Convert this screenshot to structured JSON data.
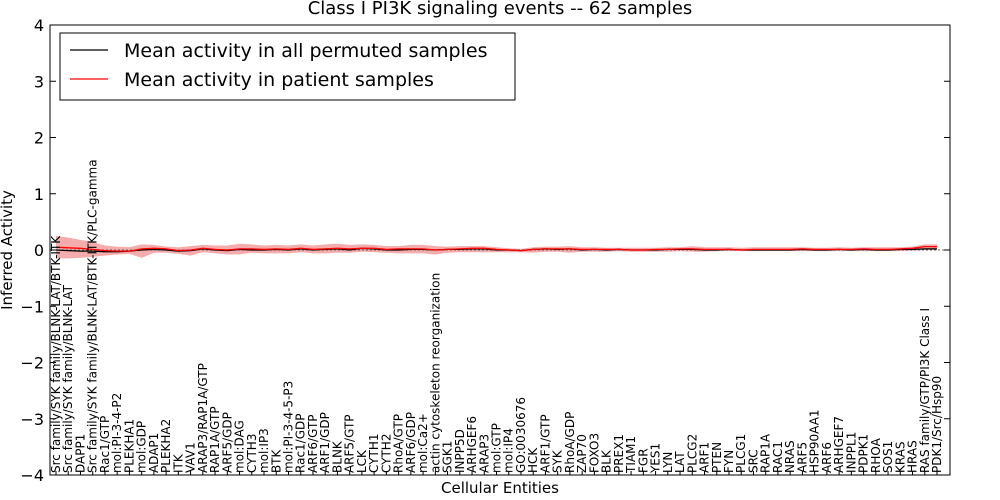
{
  "chart_data": {
    "type": "line",
    "title": "Class I PI3K signaling events -- 62 samples",
    "xlabel": "Cellular Entities",
    "ylabel": "Inferred Activity",
    "ylim": [
      -4,
      4
    ],
    "yticks": [
      "−4",
      "−3",
      "−2",
      "−1",
      "0",
      "1",
      "2",
      "3",
      "4"
    ],
    "grid": false,
    "legend_position": "top-left",
    "categories": [
      "Src family/SYK family/BLNK-LAT/BTK-ITK",
      "Src family/SYK family/BLNK-LAT",
      "DAPP1",
      "Src family/SYK family/BLNK-LAT/BTK-ITK/PLC-gamma",
      "Rac1/GTP",
      "mol:PI-3-4-P2",
      "PLEKHA1",
      "mol:GDP",
      "ADAP1",
      "PLEKHA2",
      "ITK",
      "VAV1",
      "ARAP3/RAP1A/GTP",
      "RAP1A/GTP",
      "ARF5/GDP",
      "mol:DAG",
      "CYTH3",
      "mol:IP3",
      "BTK",
      "mol:PI-3-4-5-P3",
      "Rac1/GDP",
      "ARF6/GTP",
      "ARF1/GDP",
      "BLNK",
      "ARF5/GTP",
      "LCK",
      "CYTH1",
      "CYTH2",
      "RhoA/GTP",
      "ARF6/GDP",
      "mol:Ca2+",
      "actin cytoskeleton reorganization",
      "SGK1",
      "INPP5D",
      "ARHGEF6",
      "ARAP3",
      "mol:GTP",
      "mol:IP4",
      "GO:0030676",
      "HCK",
      "ARF1/GTP",
      "SYK",
      "RhoA/GDP",
      "ZAP70",
      "FOXO3",
      "BLK",
      "PREX1",
      "TIAM1",
      "FGR",
      "YES1",
      "LYN",
      "LAT",
      "PLCG2",
      "ARF1",
      "PTEN",
      "FYN",
      "PLCG1",
      "SRC",
      "RAP1A",
      "RAC1",
      "NRAS",
      "ARF5",
      "HSP90AA1",
      "ARF6",
      "ARHGEF7",
      "INPPL1",
      "PDPK1",
      "RHOA",
      "SOS1",
      "KRAS",
      "HRAS",
      "RAS family/GTP/PI3K Class I",
      "PDK1/Src/Hsp90"
    ],
    "series": [
      {
        "name": "Mean activity in all permuted samples",
        "color": "#000000",
        "values": [
          0.0,
          -0.01,
          -0.02,
          -0.02,
          -0.03,
          -0.03,
          -0.02,
          0.0,
          0.01,
          0.0,
          -0.02,
          -0.01,
          0.02,
          0.0,
          -0.01,
          0.01,
          0.0,
          0.0,
          0.01,
          0.0,
          0.02,
          0.0,
          0.01,
          0.02,
          0.0,
          0.03,
          0.02,
          0.0,
          0.0,
          0.01,
          0.01,
          0.0,
          0.01,
          0.01,
          0.02,
          0.02,
          0.0,
          0.0,
          -0.01,
          0.01,
          0.02,
          0.01,
          0.02,
          0.0,
          0.01,
          0.0,
          0.01,
          0.0,
          0.0,
          0.0,
          0.01,
          0.01,
          0.01,
          0.0,
          0.0,
          0.01,
          0.0,
          0.0,
          0.0,
          0.0,
          0.0,
          0.01,
          0.0,
          0.0,
          0.01,
          0.0,
          0.01,
          0.0,
          0.0,
          0.01,
          0.01,
          0.02,
          0.02
        ]
      },
      {
        "name": "Mean activity in patient samples",
        "color": "#ff0000",
        "values": [
          0.05,
          0.04,
          0.03,
          0.01,
          -0.01,
          -0.02,
          -0.02,
          0.02,
          0.03,
          0.02,
          -0.01,
          0.0,
          0.03,
          0.01,
          0.0,
          0.02,
          0.02,
          0.01,
          0.02,
          0.01,
          0.03,
          0.01,
          0.02,
          0.03,
          0.02,
          0.03,
          0.03,
          0.01,
          0.02,
          0.02,
          0.02,
          0.0,
          0.01,
          0.02,
          0.03,
          0.03,
          0.01,
          0.0,
          -0.01,
          0.01,
          0.02,
          0.02,
          0.02,
          0.01,
          0.01,
          0.01,
          0.01,
          0.0,
          0.0,
          0.01,
          0.01,
          0.02,
          0.02,
          0.01,
          0.01,
          0.01,
          0.0,
          0.01,
          0.01,
          0.01,
          0.01,
          0.02,
          0.01,
          0.01,
          0.01,
          0.01,
          0.02,
          0.01,
          0.01,
          0.02,
          0.03,
          0.06,
          0.06
        ]
      }
    ],
    "band": {
      "color": "#f08080",
      "upper": [
        0.25,
        0.22,
        0.18,
        0.14,
        0.08,
        0.06,
        0.05,
        0.1,
        0.09,
        0.06,
        0.05,
        0.07,
        0.09,
        0.08,
        0.08,
        0.11,
        0.1,
        0.08,
        0.09,
        0.08,
        0.1,
        0.08,
        0.1,
        0.11,
        0.09,
        0.1,
        0.09,
        0.07,
        0.07,
        0.09,
        0.09,
        0.07,
        0.06,
        0.07,
        0.07,
        0.07,
        0.05,
        0.03,
        0.02,
        0.05,
        0.06,
        0.06,
        0.07,
        0.05,
        0.05,
        0.04,
        0.04,
        0.04,
        0.04,
        0.04,
        0.05,
        0.05,
        0.07,
        0.05,
        0.05,
        0.05,
        0.04,
        0.05,
        0.05,
        0.05,
        0.05,
        0.05,
        0.04,
        0.04,
        0.05,
        0.04,
        0.05,
        0.05,
        0.05,
        0.05,
        0.06,
        0.1,
        0.1
      ],
      "lower": [
        -0.15,
        -0.15,
        -0.14,
        -0.12,
        -0.1,
        -0.08,
        -0.07,
        -0.14,
        -0.05,
        -0.05,
        -0.07,
        -0.1,
        -0.04,
        -0.06,
        -0.08,
        -0.08,
        -0.05,
        -0.06,
        -0.06,
        -0.06,
        -0.04,
        -0.06,
        -0.06,
        -0.05,
        -0.05,
        -0.03,
        -0.04,
        -0.05,
        -0.06,
        -0.06,
        -0.06,
        -0.08,
        -0.05,
        -0.04,
        -0.04,
        -0.04,
        -0.04,
        -0.04,
        -0.04,
        -0.05,
        -0.03,
        -0.03,
        -0.05,
        -0.03,
        -0.03,
        -0.03,
        -0.02,
        -0.03,
        -0.03,
        -0.03,
        -0.03,
        -0.02,
        -0.03,
        -0.03,
        -0.02,
        -0.02,
        -0.02,
        -0.02,
        -0.02,
        -0.02,
        -0.02,
        -0.02,
        -0.02,
        -0.02,
        -0.02,
        -0.02,
        -0.02,
        -0.02,
        -0.02,
        -0.02,
        -0.01,
        0.0,
        0.0
      ]
    }
  }
}
